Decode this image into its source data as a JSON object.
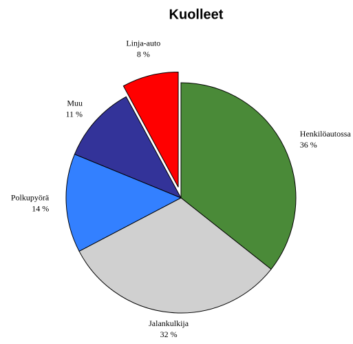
{
  "chart_data": {
    "type": "pie",
    "title": "Kuolleet",
    "categories": [
      "Henkilöautossa",
      "Jalankulkija",
      "Polkupyörä",
      "Muu",
      "Linja-auto"
    ],
    "values": [
      36,
      32,
      14,
      11,
      8
    ],
    "value_labels": [
      "36 %",
      "32 %",
      "14 %",
      "11 %",
      "8 %"
    ],
    "colors": [
      "#4a8a38",
      "#d0d0d0",
      "#3380ff",
      "#333399",
      "#ff0000"
    ],
    "exploded": [
      false,
      false,
      false,
      false,
      true
    ]
  }
}
